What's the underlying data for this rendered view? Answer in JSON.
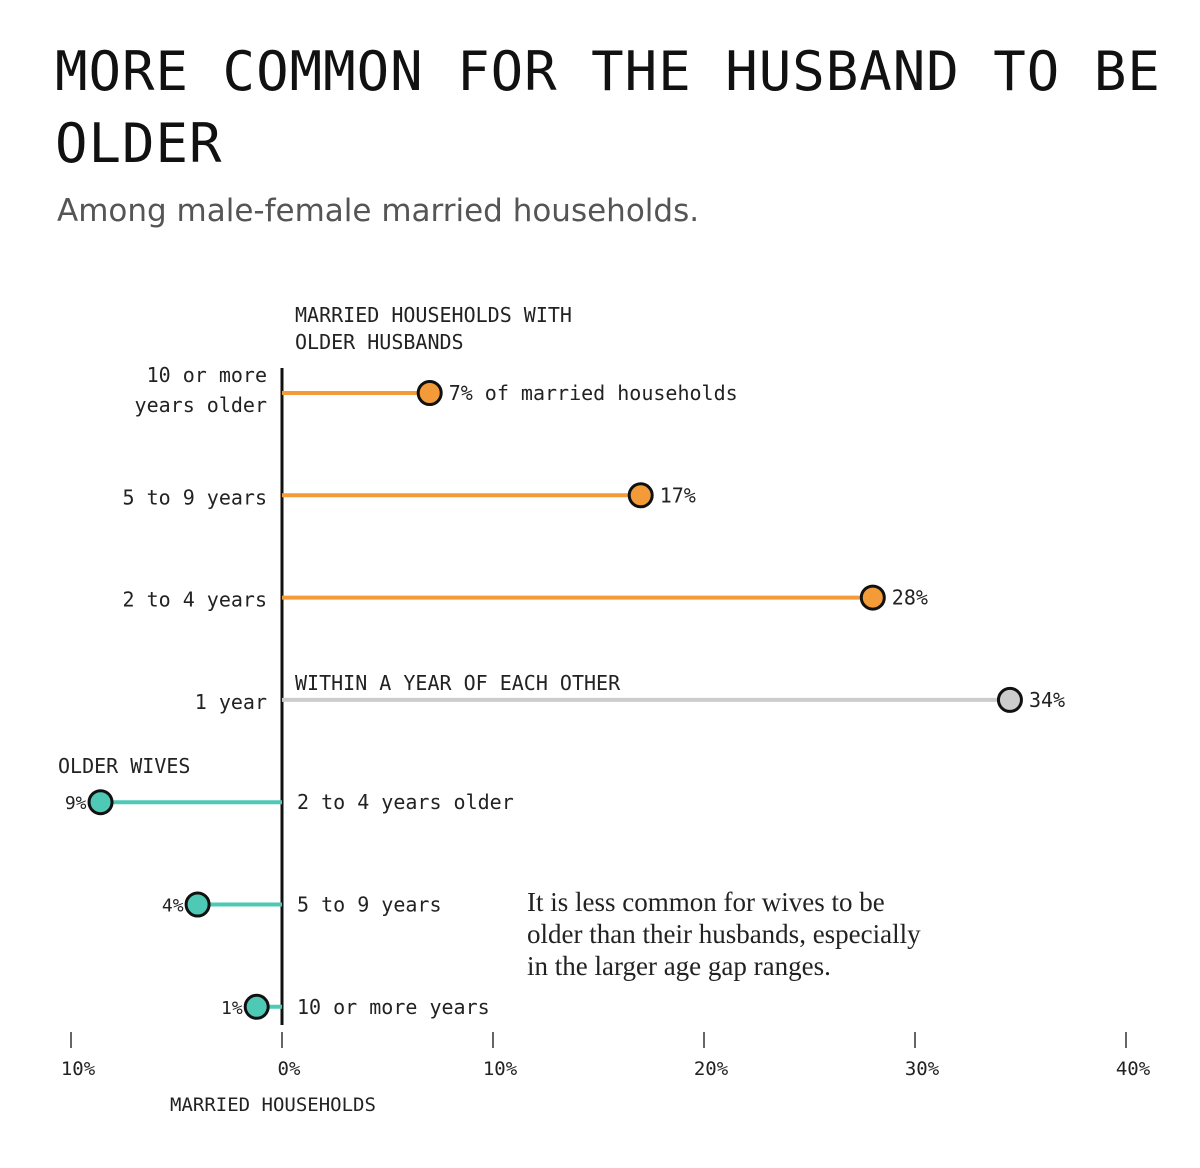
{
  "chart_data": {
    "type": "lollipop",
    "title": "MORE COMMON FOR THE HUSBAND TO BE OLDER",
    "subtitle": "Among male-female married households.",
    "xlabel": "MARRIED HOUSEHOLDS",
    "xlim": [
      -10,
      40
    ],
    "xticks": [
      {
        "value": -10,
        "label": "10%"
      },
      {
        "value": 0,
        "label": "0%"
      },
      {
        "value": 10,
        "label": "10%"
      },
      {
        "value": 20,
        "label": "20%"
      },
      {
        "value": 30,
        "label": "30%"
      },
      {
        "value": 40,
        "label": "40%"
      }
    ],
    "group_labels": {
      "older_husbands_line1": "MARRIED HOUSEHOLDS WITH",
      "older_husbands_line2": "OLDER HUSBANDS",
      "within_year": "WITHIN A YEAR OF EACH OTHER",
      "older_wives": "OLDER WIVES"
    },
    "annotation": {
      "line1": "It is less common for wives to be",
      "line2": "older than their husbands, especially",
      "line3": "in the larger age gap ranges."
    },
    "colors": {
      "older_husbands": "#f29b38",
      "within_year": "#cccccc",
      "older_wives": "#4ec9b5",
      "axis": "#111111",
      "text": "#222222"
    },
    "series": [
      {
        "group": "older_husbands",
        "value": 7,
        "label_lines": [
          "10 or more",
          "years older"
        ],
        "value_label": "7% of married households"
      },
      {
        "group": "older_husbands",
        "value": 17,
        "label_lines": [
          "5 to 9 years"
        ],
        "value_label": "17%"
      },
      {
        "group": "older_husbands",
        "value": 28,
        "label_lines": [
          "2 to 4 years"
        ],
        "value_label": "28%"
      },
      {
        "group": "within_year",
        "value": 34.5,
        "label_lines": [
          "1 year"
        ],
        "value_label": "34%"
      },
      {
        "group": "older_wives",
        "value": -8.6,
        "label_lines": [
          "2 to 4 years older"
        ],
        "value_label": "9%"
      },
      {
        "group": "older_wives",
        "value": -4,
        "label_lines": [
          "5 to 9 years"
        ],
        "value_label": "4%"
      },
      {
        "group": "older_wives",
        "value": -1.2,
        "label_lines": [
          "10 or more years"
        ],
        "value_label": "1%"
      }
    ]
  }
}
